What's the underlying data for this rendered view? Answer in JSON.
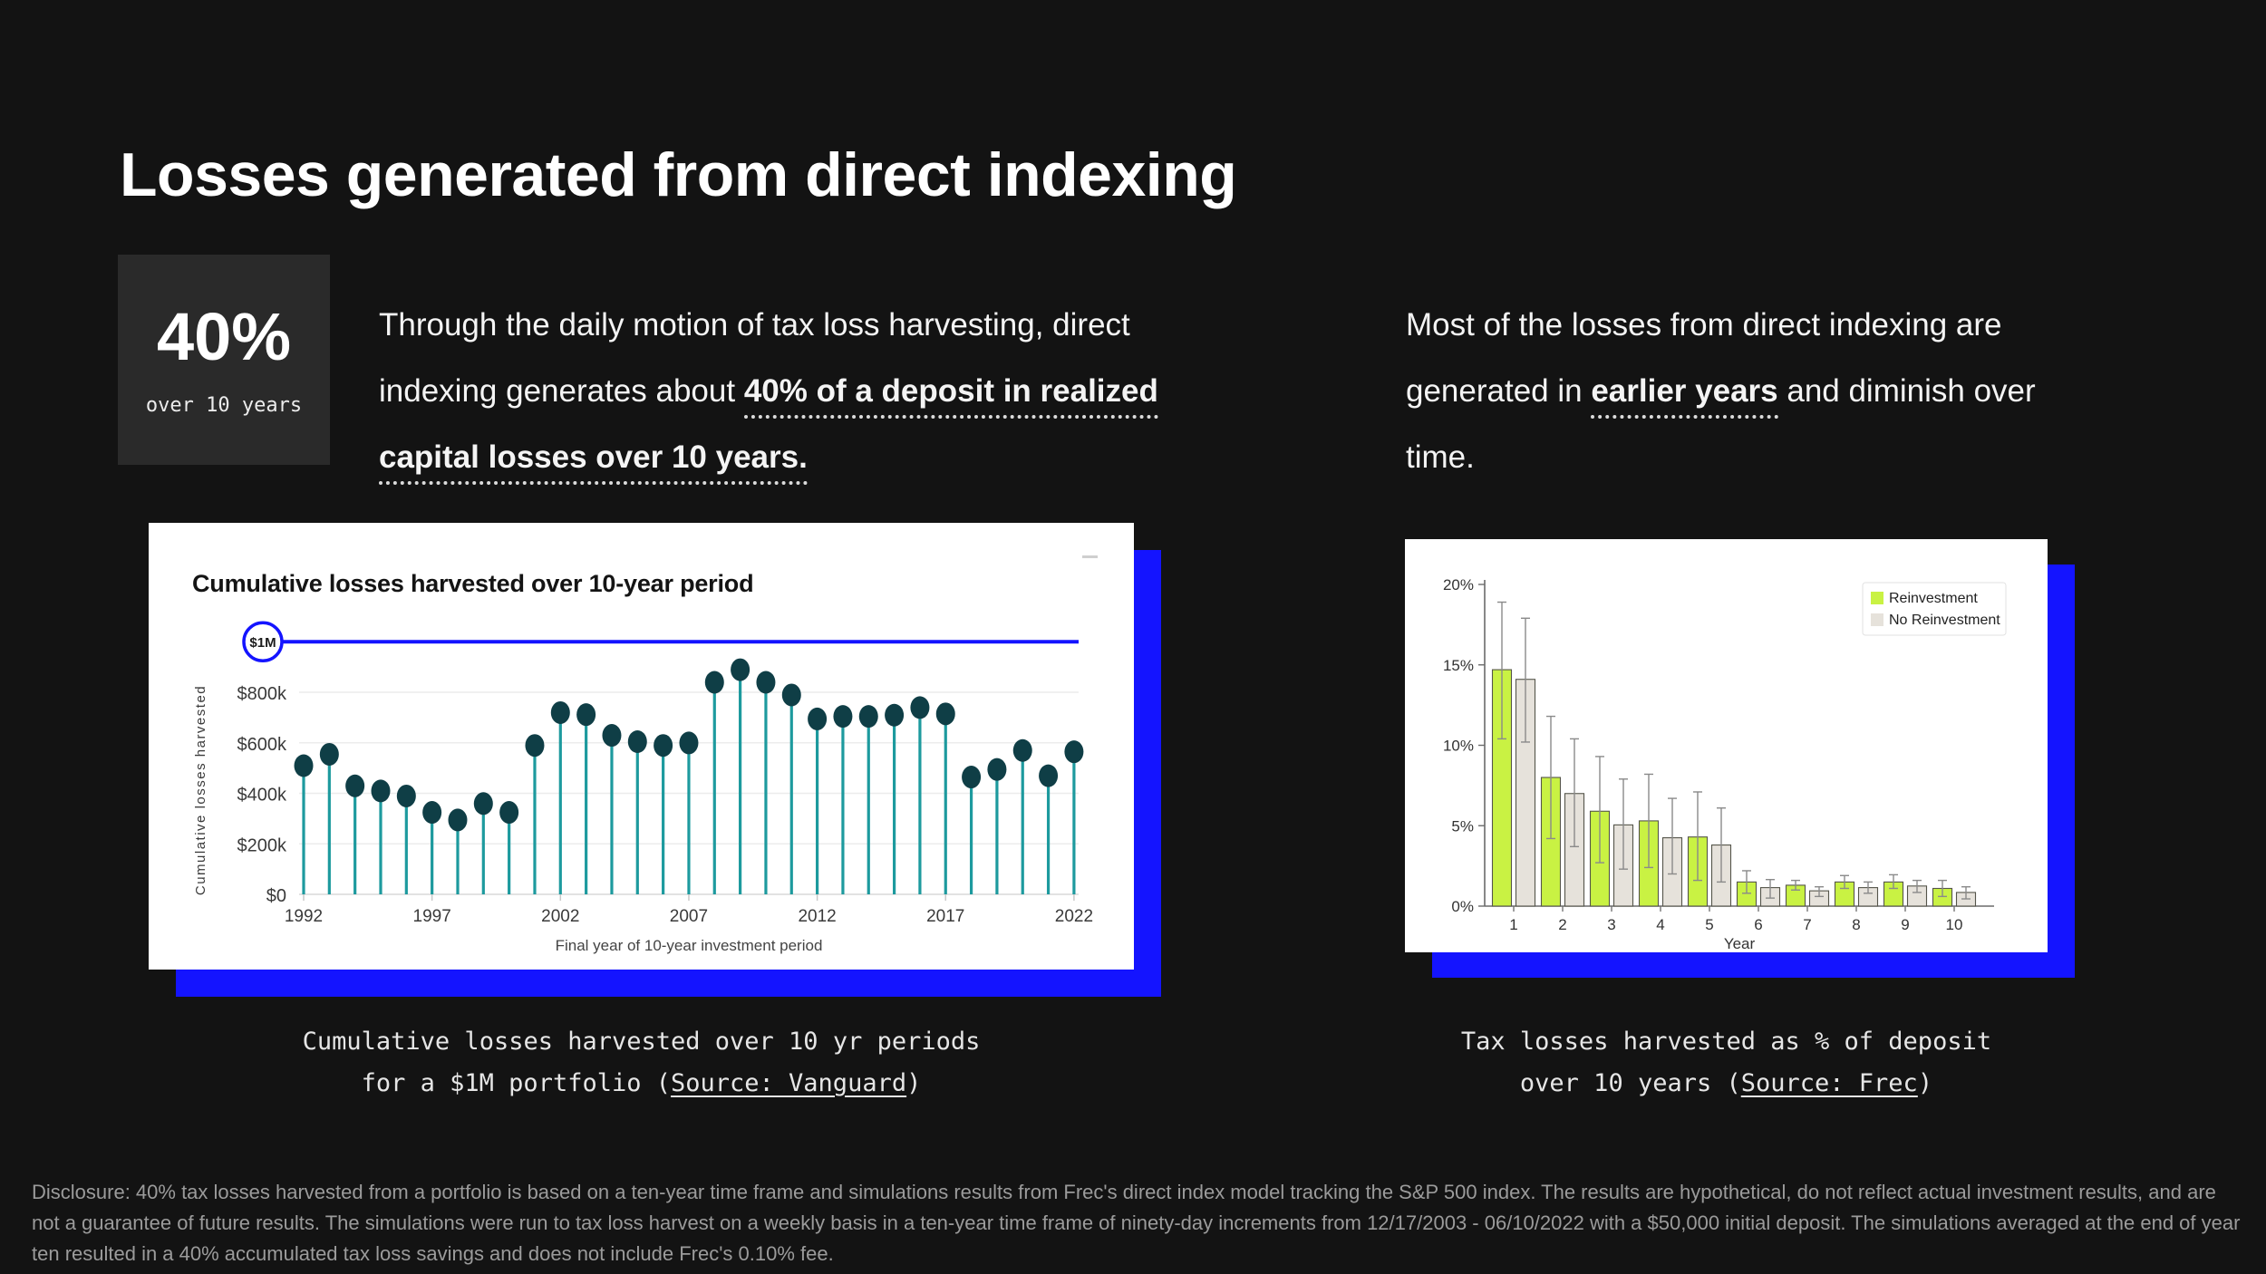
{
  "page": {
    "title": "Losses generated from direct indexing",
    "stat": {
      "value": "40%",
      "caption": "over 10 years"
    },
    "left_paragraph": {
      "normal": "Through the daily motion of tax loss harvesting, direct indexing generates about ",
      "highlight": "40% of a deposit in realized capital losses over 10 years."
    },
    "right_paragraph": {
      "pre": "Most of the losses from direct indexing are generated in ",
      "highlight": "earlier years",
      "post": " and diminish over time."
    },
    "captions": {
      "left": {
        "line1": "Cumulative losses harvested over 10 yr periods",
        "line2_pre": "for a $1M portfolio (",
        "link": "Source: Vanguard",
        "post": ")"
      },
      "right": {
        "line1": "Tax losses harvested as % of deposit",
        "line2_pre": "over 10 years (",
        "link": "Source: Frec",
        "post": ")"
      }
    },
    "disclosure": "Disclosure: 40% tax losses harvested from a portfolio is based on a ten-year time frame and simulations results from Frec's direct index model tracking the S&P 500 index. The results are hypothetical, do not reflect actual investment results, and are not a guarantee of future results. The simulations were run to tax loss harvest on a weekly basis in a ten-year time frame of ninety-day increments from 12/17/2003 - 06/10/2022 with a $50,000 initial deposit. The simulations averaged at the end of year ten resulted in a 40% accumulated tax loss savings and does not include Frec's 0.10% fee."
  },
  "colors": {
    "background": "#131313",
    "accent_blue": "#1414ff",
    "stat_box": "#2a2a2a",
    "lollipop_stem": "#1d9a9e",
    "lollipop_dot": "#0f3e46",
    "grid": "#ececec",
    "axis_text": "#3a3a3a",
    "axis_line": "#6b6b6b",
    "bar_reinvestment": "#c9f243",
    "bar_no_reinvestment": "#e6e2db",
    "bar_outline": "#55554a",
    "error_bar": "#8a8a8a"
  },
  "chart_data": [
    {
      "type": "lollipop",
      "title": "Cumulative losses harvested over 10-year period",
      "xlabel": "Final year of 10-year investment period",
      "ylabel": "Cumulative losses harvested",
      "ylim": [
        0,
        1000
      ],
      "grid": true,
      "y_ticks": [
        {
          "label": "$0",
          "value": 0
        },
        {
          "label": "$200k",
          "value": 200
        },
        {
          "label": "$400k",
          "value": 400
        },
        {
          "label": "$600k",
          "value": 600
        },
        {
          "label": "$800k",
          "value": 800
        }
      ],
      "reference_line": {
        "label": "$1M",
        "value": 1000
      },
      "x_tick_years": [
        1992,
        1997,
        2002,
        2007,
        2012,
        2017,
        2022
      ],
      "years": [
        1992,
        1993,
        1994,
        1995,
        1996,
        1997,
        1998,
        1999,
        2000,
        2001,
        2002,
        2003,
        2004,
        2005,
        2006,
        2007,
        2008,
        2009,
        2010,
        2011,
        2012,
        2013,
        2014,
        2015,
        2016,
        2017,
        2018,
        2019,
        2020,
        2021,
        2022
      ],
      "values_k": [
        470,
        515,
        390,
        370,
        350,
        285,
        255,
        320,
        285,
        550,
        680,
        672,
        590,
        565,
        550,
        560,
        800,
        850,
        800,
        750,
        655,
        665,
        665,
        670,
        700,
        675,
        425,
        455,
        530,
        430,
        525
      ]
    },
    {
      "type": "grouped_bar_with_error",
      "title": "",
      "xlabel": "Year",
      "ylabel": "",
      "ylim": [
        0,
        20
      ],
      "grid": false,
      "legend_position": "top-right",
      "y_ticks": [
        {
          "label": "0%",
          "value": 0
        },
        {
          "label": "5%",
          "value": 5
        },
        {
          "label": "10%",
          "value": 10
        },
        {
          "label": "15%",
          "value": 15
        },
        {
          "label": "20%",
          "value": 20
        }
      ],
      "categories": [
        "1",
        "2",
        "3",
        "4",
        "5",
        "6",
        "7",
        "8",
        "9",
        "10"
      ],
      "series": [
        {
          "name": "Reinvestment",
          "color": "#c9f243",
          "values": [
            14.7,
            8.0,
            5.9,
            5.3,
            4.3,
            1.5,
            1.3,
            1.5,
            1.5,
            1.1
          ],
          "error_low": [
            10.4,
            4.2,
            2.7,
            2.4,
            1.6,
            0.8,
            1.0,
            1.1,
            1.1,
            0.6
          ],
          "error_high": [
            18.9,
            11.8,
            9.3,
            8.2,
            7.1,
            2.2,
            1.6,
            1.9,
            1.95,
            1.6
          ]
        },
        {
          "name": "No Reinvestment",
          "color": "#e6e2db",
          "values": [
            14.1,
            7.0,
            5.05,
            4.25,
            3.8,
            1.15,
            0.95,
            1.15,
            1.25,
            0.85
          ],
          "error_low": [
            10.2,
            3.7,
            2.3,
            2.0,
            1.5,
            0.5,
            0.6,
            0.8,
            0.85,
            0.45
          ],
          "error_high": [
            17.9,
            10.4,
            7.9,
            6.7,
            6.1,
            1.65,
            1.2,
            1.5,
            1.6,
            1.2
          ]
        }
      ]
    }
  ]
}
